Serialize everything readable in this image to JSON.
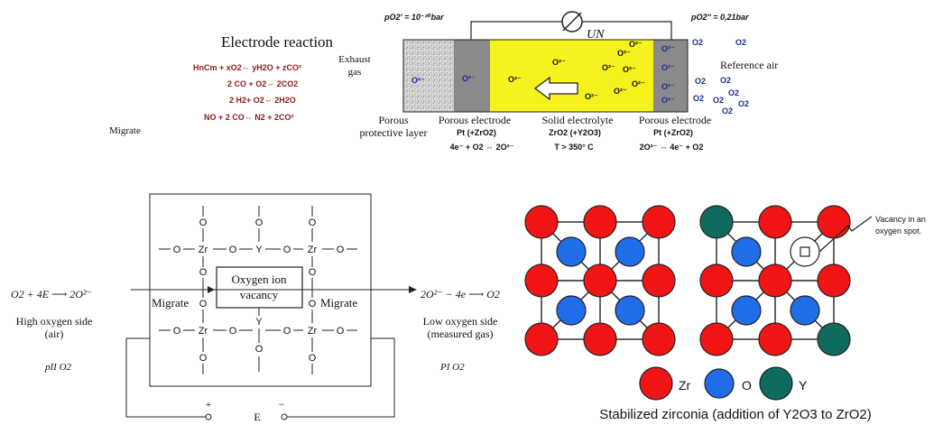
{
  "top_sensor": {
    "electrode_reaction_title": "Electrode reaction",
    "reactions": [
      "HnCm + xO2⇔ yH2O + zCO²",
      "2 CO + O2⇔ 2CO2",
      "2 H2+ O2⇔ 2H2O",
      "NO + 2 CO⇔ N2 + 2CO²"
    ],
    "migrate_label": "Migrate",
    "exhaust_label_1": "Exhaust",
    "exhaust_label_2": "gas",
    "pressure_left": "pO2' = 10⁻²⁰bar",
    "pressure_right": "pO2'' = 0,21bar",
    "voltage_label": "UN",
    "reference_air": "Reference air",
    "porous_protective_1": "Porous",
    "porous_protective_2": "protective layer",
    "porous_electrode_left": "Porous electrode",
    "porous_electrode_left_mat": "Pt (+ZrO2)",
    "left_reaction": "4e⁻ + O2 ⇔ 2O²⁻",
    "solid_electrolyte": "Solid electrolyte",
    "solid_electrolyte_mat": "ZrO2 (+Y2O3)",
    "temperature": "T > 350° C",
    "porous_electrode_right": "Porous electrode",
    "porous_electrode_right_mat": "Pt (+ZrO2)",
    "right_reaction": "2O²⁻ ⇔ 4e⁻ + O2",
    "ion_label": "O²⁻",
    "o2_label": "O2",
    "colors": {
      "electrolyte": "#f6f21e",
      "electrode": "#8a8a8a",
      "protective": "#c9c9c9",
      "red_text": "#8b1a1a",
      "blue_text": "#1a2f8b"
    }
  },
  "lattice_diagram": {
    "left_equation": "O2 + 4E ⟶ 2O²⁻",
    "right_equation": "2O²⁻ − 4e ⟶ O2",
    "migrate_left": "Migrate",
    "migrate_right": "Migrate",
    "vacancy_box_1": "Oxygen ion",
    "vacancy_box_2": "vacancy",
    "high_side_1": "High oxygen side",
    "high_side_2": "(air)",
    "low_side_1": "Low oxygen side",
    "low_side_2": "(measured gas)",
    "p_high": "pII O2",
    "p_low": "PI O2",
    "atom_o": "O",
    "atom_zr": "Zr",
    "atom_y": "Y",
    "circuit_plus": "+",
    "circuit_minus": "−",
    "circuit_e": "E"
  },
  "zirconia": {
    "vacancy_callout_1": "Vacancy in an",
    "vacancy_callout_2": "oxygen spot.",
    "legend_zr": "Zr",
    "legend_o": "O",
    "legend_y": "Y",
    "caption": "Stabilized  zirconia (addition of  Y2O3 to ZrO2)",
    "colors": {
      "zr": "#f21515",
      "o": "#1f6de8",
      "y": "#0f6b5e"
    }
  }
}
